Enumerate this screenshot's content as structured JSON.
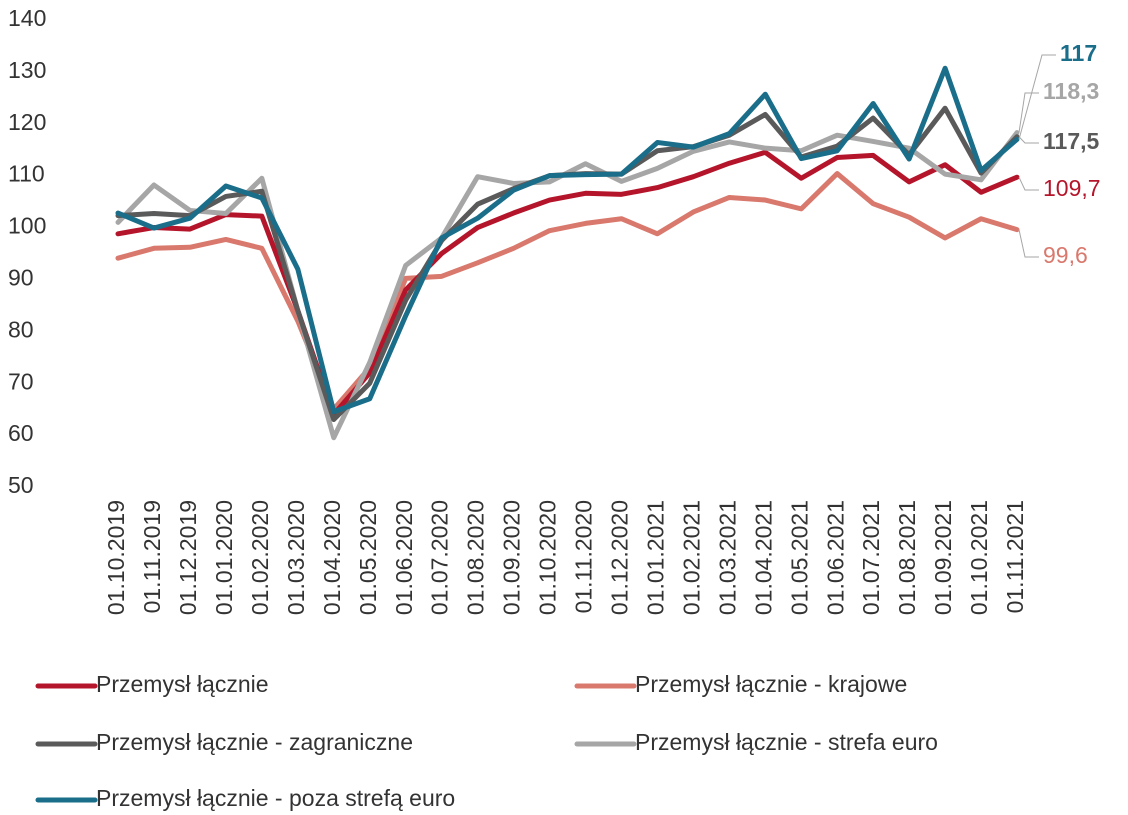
{
  "chart_data": {
    "type": "line",
    "categories": [
      "01.10.2019",
      "01.11.2019",
      "01.12.2019",
      "01.01.2020",
      "01.02.2020",
      "01.03.2020",
      "01.04.2020",
      "01.05.2020",
      "01.06.2020",
      "01.07.2020",
      "01.08.2020",
      "01.09.2020",
      "01.10.2020",
      "01.11.2020",
      "01.12.2020",
      "01.01.2021",
      "01.02.2021",
      "01.03.2021",
      "01.04.2021",
      "01.05.2021",
      "01.06.2021",
      "01.07.2021",
      "01.08.2021",
      "01.09.2021",
      "01.10.2021",
      "01.11.2021"
    ],
    "ylim": [
      50,
      140
    ],
    "yticks": [
      50,
      60,
      70,
      80,
      90,
      100,
      110,
      120,
      130,
      140
    ],
    "series": [
      {
        "name": "Przemysł łącznie",
        "color": "#b5152b",
        "values": [
          98.8,
          100,
          99.7,
          102.5,
          102.2,
          84,
          64,
          72,
          88,
          95,
          100,
          102.8,
          105.3,
          106.6,
          106.4,
          107.7,
          109.8,
          112.4,
          114.5,
          109.5,
          113.5,
          113.9,
          108.8,
          112.1,
          106.8,
          109.7
        ],
        "value_labels": [
          null,
          null,
          null,
          null,
          null,
          null,
          null,
          null,
          null,
          null,
          null,
          null,
          null,
          null,
          null,
          null,
          null,
          null,
          null,
          null,
          null,
          null,
          null,
          null,
          null,
          "109,7"
        ]
      },
      {
        "name": "Przemysł łącznie - krajowe",
        "color": "#d9786c",
        "values": [
          94.1,
          96,
          96.2,
          97.7,
          96,
          82,
          65,
          73,
          90.2,
          90.6,
          93.2,
          96,
          99.4,
          100.8,
          101.7,
          98.8,
          103,
          105.8,
          105.3,
          103.6,
          110.4,
          104.6,
          102,
          98,
          101.7,
          99.6
        ],
        "value_labels": [
          null,
          null,
          null,
          null,
          null,
          null,
          null,
          null,
          null,
          null,
          null,
          null,
          null,
          null,
          null,
          null,
          null,
          null,
          null,
          null,
          null,
          null,
          null,
          null,
          null,
          "99,6"
        ]
      },
      {
        "name": "Przemysł łącznie - zagraniczne",
        "color": "#5a5a5a",
        "values": [
          102.3,
          102.7,
          102.3,
          106,
          107,
          84,
          63,
          70,
          86,
          97.5,
          104.5,
          107.5,
          110,
          110.4,
          110.3,
          114.8,
          115.6,
          117.8,
          121.8,
          113.6,
          115.7,
          121.1,
          114,
          123,
          110.5,
          117.5
        ],
        "value_labels": [
          null,
          null,
          null,
          null,
          null,
          null,
          null,
          null,
          null,
          null,
          null,
          null,
          null,
          null,
          null,
          null,
          null,
          null,
          null,
          null,
          null,
          null,
          null,
          null,
          null,
          "117,5"
        ]
      },
      {
        "name": "Przemysł łącznie - strefa euro",
        "color": "#a6a6a6",
        "values": [
          101,
          108.2,
          103.3,
          102.7,
          109.5,
          84,
          59.5,
          74,
          92.7,
          98,
          109.8,
          108.5,
          108.8,
          112.3,
          108.9,
          111.4,
          114.7,
          116.5,
          115.3,
          114.8,
          117.8,
          116.6,
          115.3,
          110.3,
          109.2,
          118.3
        ],
        "value_labels": [
          null,
          null,
          null,
          null,
          null,
          null,
          null,
          null,
          null,
          null,
          null,
          null,
          null,
          null,
          null,
          null,
          null,
          null,
          null,
          null,
          null,
          null,
          null,
          null,
          null,
          "118,3"
        ]
      },
      {
        "name": "Przemysł łącznie - poza strefą euro",
        "color": "#1a6e8a",
        "values": [
          102.8,
          99.9,
          101.8,
          108,
          105.7,
          92,
          64.5,
          67,
          83,
          98,
          101.8,
          107.2,
          110,
          110.2,
          110.3,
          116.4,
          115.5,
          118.1,
          125.7,
          113.3,
          114.8,
          123.9,
          113.2,
          130.7,
          111,
          117
        ],
        "value_labels": [
          null,
          null,
          null,
          null,
          null,
          null,
          null,
          null,
          null,
          null,
          null,
          null,
          null,
          null,
          null,
          null,
          null,
          null,
          null,
          null,
          null,
          null,
          null,
          null,
          null,
          "117"
        ]
      }
    ]
  }
}
